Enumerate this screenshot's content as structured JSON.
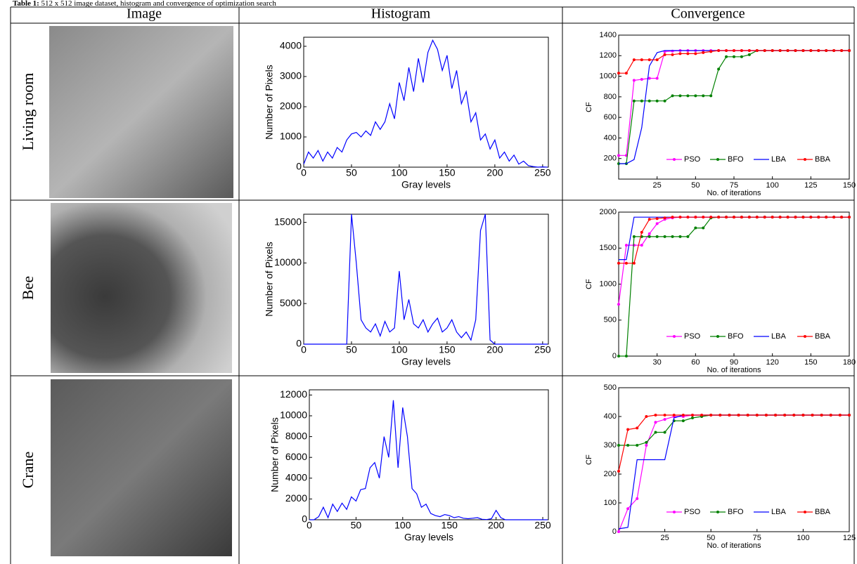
{
  "caption": {
    "label": "Table 1:",
    "text": "512 x 512 image dataset, histogram and convergence of optimization search"
  },
  "table": {
    "headers": [
      "Image",
      "Histogram",
      "Convergence"
    ],
    "row_labels": [
      "Living room",
      "Bee",
      "Crane"
    ]
  },
  "chart_data": [
    {
      "type": "line",
      "xlabel": "Gray levels",
      "ylabel": "Number of Pixels",
      "color": "#0000ff",
      "x": [
        0,
        5,
        10,
        15,
        20,
        25,
        30,
        35,
        40,
        45,
        50,
        55,
        60,
        65,
        70,
        75,
        80,
        85,
        90,
        95,
        100,
        105,
        110,
        115,
        120,
        125,
        130,
        135,
        140,
        145,
        150,
        155,
        160,
        165,
        170,
        175,
        180,
        185,
        190,
        195,
        200,
        205,
        210,
        215,
        220,
        225,
        230,
        235,
        240,
        245,
        250,
        255
      ],
      "values": [
        100,
        500,
        300,
        550,
        200,
        500,
        300,
        650,
        500,
        900,
        1100,
        1150,
        1000,
        1200,
        1050,
        1500,
        1250,
        1500,
        2100,
        1600,
        2800,
        2200,
        3300,
        2500,
        3600,
        2800,
        3800,
        4200,
        3900,
        3200,
        3700,
        2600,
        3200,
        2100,
        2500,
        1500,
        1800,
        900,
        1100,
        600,
        900,
        300,
        500,
        200,
        400,
        100,
        200,
        50,
        20,
        0,
        10,
        0
      ],
      "xlim": [
        0,
        256
      ],
      "ylim": [
        0,
        4300
      ],
      "xticks": [
        0,
        50,
        100,
        150,
        200,
        250
      ],
      "yticks": [
        0,
        1000,
        2000,
        3000,
        4000
      ]
    },
    {
      "type": "line",
      "xlabel": "No. of iterations",
      "ylabel": "CF",
      "legend": "lower right",
      "x": [
        0,
        5,
        10,
        15,
        20,
        25,
        30,
        35,
        40,
        45,
        50,
        55,
        60,
        65,
        70,
        75,
        80,
        85,
        90,
        95,
        100,
        105,
        110,
        115,
        120,
        125,
        130,
        135,
        140,
        145,
        150
      ],
      "series": [
        {
          "name": "PSO",
          "color": "#ff00ff",
          "marker": "dot",
          "values": [
            230,
            230,
            960,
            970,
            980,
            980,
            1240,
            1245,
            1250,
            1250,
            1250,
            1250,
            1250,
            1250,
            1250,
            1250,
            1250,
            1250,
            1250,
            1250,
            1250,
            1250,
            1250,
            1250,
            1250,
            1250,
            1250,
            1250,
            1250,
            1250,
            1250
          ]
        },
        {
          "name": "BFO",
          "color": "#008000",
          "marker": "dot",
          "values": [
            150,
            150,
            760,
            760,
            760,
            760,
            760,
            810,
            810,
            810,
            810,
            810,
            810,
            1070,
            1190,
            1190,
            1190,
            1210,
            1250,
            1250,
            1250,
            1250,
            1250,
            1250,
            1250,
            1250,
            1250,
            1250,
            1250,
            1250,
            1250
          ]
        },
        {
          "name": "LBA",
          "color": "#0000ff",
          "marker": "none",
          "values": [
            150,
            150,
            190,
            500,
            1100,
            1230,
            1250,
            1250,
            1250,
            1250,
            1250,
            1250,
            1250,
            1250,
            1250,
            1250,
            1250,
            1250,
            1250,
            1250,
            1250,
            1250,
            1250,
            1250,
            1250,
            1250,
            1250,
            1250,
            1250,
            1250,
            1250
          ]
        },
        {
          "name": "BBA",
          "color": "#ff0000",
          "marker": "dot",
          "values": [
            1030,
            1030,
            1160,
            1160,
            1160,
            1160,
            1210,
            1210,
            1220,
            1220,
            1220,
            1230,
            1240,
            1250,
            1250,
            1250,
            1250,
            1250,
            1250,
            1250,
            1250,
            1250,
            1250,
            1250,
            1250,
            1250,
            1250,
            1250,
            1250,
            1250,
            1250
          ]
        }
      ],
      "xlim": [
        0,
        150
      ],
      "ylim": [
        0,
        1400
      ],
      "xticks": [
        25,
        50,
        75,
        100,
        125,
        150
      ],
      "yticks": [
        200,
        400,
        600,
        800,
        1000,
        1200,
        1400
      ]
    },
    {
      "type": "line",
      "xlabel": "Gray levels",
      "ylabel": "Number of Pixels",
      "color": "#0000ff",
      "x": [
        0,
        5,
        10,
        15,
        20,
        25,
        30,
        35,
        40,
        45,
        50,
        55,
        60,
        65,
        70,
        75,
        80,
        85,
        90,
        95,
        100,
        105,
        110,
        115,
        120,
        125,
        130,
        135,
        140,
        145,
        150,
        155,
        160,
        165,
        170,
        175,
        180,
        185,
        190,
        195,
        200,
        205,
        210,
        215,
        220,
        225,
        230,
        235,
        240,
        245,
        250,
        255
      ],
      "values": [
        0,
        0,
        0,
        0,
        0,
        0,
        0,
        0,
        0,
        0,
        16000,
        10000,
        3000,
        2000,
        1500,
        2500,
        1000,
        2800,
        1500,
        2000,
        9000,
        3000,
        5500,
        2500,
        2000,
        3000,
        1500,
        2500,
        3200,
        1500,
        2000,
        3000,
        1500,
        800,
        1500,
        500,
        3000,
        14000,
        16000,
        500,
        0,
        0,
        0,
        0,
        0,
        0,
        0,
        0,
        0,
        0,
        0,
        0
      ],
      "xlim": [
        0,
        256
      ],
      "ylim": [
        0,
        16000
      ],
      "xticks": [
        0,
        50,
        100,
        150,
        200,
        250
      ],
      "yticks": [
        0,
        5000,
        10000,
        15000
      ]
    },
    {
      "type": "line",
      "xlabel": "No. of iterations",
      "ylabel": "CF",
      "legend": "lower right",
      "x": [
        0,
        6,
        12,
        18,
        24,
        30,
        36,
        42,
        48,
        54,
        60,
        66,
        72,
        78,
        84,
        90,
        96,
        102,
        108,
        114,
        120,
        126,
        132,
        138,
        144,
        150,
        156,
        162,
        168,
        174,
        180
      ],
      "series": [
        {
          "name": "PSO",
          "color": "#ff00ff",
          "marker": "dot",
          "values": [
            720,
            1540,
            1540,
            1540,
            1700,
            1840,
            1900,
            1920,
            1930,
            1930,
            1930,
            1930,
            1930,
            1930,
            1930,
            1930,
            1930,
            1930,
            1930,
            1930,
            1930,
            1930,
            1930,
            1930,
            1930,
            1930,
            1930,
            1930,
            1930,
            1930,
            1930
          ]
        },
        {
          "name": "BFO",
          "color": "#008000",
          "marker": "dot",
          "values": [
            0,
            0,
            1660,
            1660,
            1660,
            1660,
            1660,
            1660,
            1660,
            1660,
            1780,
            1780,
            1920,
            1930,
            1930,
            1930,
            1930,
            1930,
            1930,
            1930,
            1930,
            1930,
            1930,
            1930,
            1930,
            1930,
            1930,
            1930,
            1930,
            1930,
            1930
          ]
        },
        {
          "name": "LBA",
          "color": "#0000ff",
          "marker": "none",
          "values": [
            1340,
            1340,
            1930,
            1930,
            1930,
            1930,
            1930,
            1930,
            1930,
            1930,
            1930,
            1930,
            1930,
            1930,
            1930,
            1930,
            1930,
            1930,
            1930,
            1930,
            1930,
            1930,
            1930,
            1930,
            1930,
            1930,
            1930,
            1930,
            1930,
            1930,
            1930
          ]
        },
        {
          "name": "BBA",
          "color": "#ff0000",
          "marker": "dot",
          "values": [
            1290,
            1290,
            1290,
            1720,
            1900,
            1910,
            1920,
            1930,
            1930,
            1930,
            1930,
            1930,
            1930,
            1930,
            1930,
            1930,
            1930,
            1930,
            1930,
            1930,
            1930,
            1930,
            1930,
            1930,
            1930,
            1930,
            1930,
            1930,
            1930,
            1930,
            1930
          ]
        }
      ],
      "xlim": [
        0,
        180
      ],
      "ylim": [
        0,
        2000
      ],
      "xticks": [
        30,
        60,
        90,
        120,
        150,
        180
      ],
      "yticks": [
        0,
        500,
        1000,
        1500,
        2000
      ]
    },
    {
      "type": "line",
      "xlabel": "Gray levels",
      "ylabel": "Number of Pixels",
      "color": "#0000ff",
      "x": [
        0,
        5,
        10,
        15,
        20,
        25,
        30,
        35,
        40,
        45,
        50,
        55,
        60,
        65,
        70,
        75,
        80,
        85,
        90,
        95,
        100,
        105,
        110,
        115,
        120,
        125,
        130,
        135,
        140,
        145,
        150,
        155,
        160,
        165,
        170,
        175,
        180,
        185,
        190,
        195,
        200,
        205,
        210,
        215,
        220,
        225,
        230,
        235,
        240,
        245,
        250,
        255
      ],
      "values": [
        0,
        0,
        300,
        1200,
        200,
        1500,
        800,
        1600,
        1000,
        2200,
        1800,
        2900,
        3000,
        5000,
        5500,
        4000,
        8000,
        6000,
        11500,
        5000,
        10800,
        8000,
        3000,
        2500,
        1200,
        1500,
        600,
        400,
        300,
        500,
        400,
        200,
        300,
        150,
        100,
        150,
        200,
        50,
        20,
        100,
        900,
        200,
        0,
        0,
        0,
        0,
        0,
        0,
        0,
        0,
        0,
        0
      ],
      "xlim": [
        0,
        256
      ],
      "ylim": [
        0,
        12500
      ],
      "xticks": [
        0,
        50,
        100,
        150,
        200,
        250
      ],
      "yticks": [
        0,
        2000,
        4000,
        6000,
        8000,
        10000,
        12000
      ]
    },
    {
      "type": "line",
      "xlabel": "No. of iterations",
      "ylabel": "CF",
      "legend": "lower right",
      "x": [
        0,
        5,
        10,
        15,
        20,
        25,
        30,
        35,
        40,
        45,
        50,
        55,
        60,
        65,
        70,
        75,
        80,
        85,
        90,
        95,
        100,
        105,
        110,
        115,
        120,
        125
      ],
      "series": [
        {
          "name": "PSO",
          "color": "#ff00ff",
          "marker": "dot",
          "values": [
            0,
            80,
            115,
            300,
            380,
            390,
            400,
            400,
            405,
            405,
            405,
            405,
            405,
            405,
            405,
            405,
            405,
            405,
            405,
            405,
            405,
            405,
            405,
            405,
            405,
            405
          ]
        },
        {
          "name": "BFO",
          "color": "#008000",
          "marker": "dot",
          "values": [
            300,
            300,
            300,
            310,
            345,
            345,
            385,
            385,
            395,
            400,
            405,
            405,
            405,
            405,
            405,
            405,
            405,
            405,
            405,
            405,
            405,
            405,
            405,
            405,
            405,
            405
          ]
        },
        {
          "name": "LBA",
          "color": "#0000ff",
          "marker": "none",
          "values": [
            10,
            15,
            250,
            250,
            250,
            250,
            395,
            405,
            405,
            405,
            405,
            405,
            405,
            405,
            405,
            405,
            405,
            405,
            405,
            405,
            405,
            405,
            405,
            405,
            405,
            405
          ]
        },
        {
          "name": "BBA",
          "color": "#ff0000",
          "marker": "dot",
          "values": [
            210,
            355,
            360,
            400,
            405,
            405,
            405,
            405,
            405,
            405,
            405,
            405,
            405,
            405,
            405,
            405,
            405,
            405,
            405,
            405,
            405,
            405,
            405,
            405,
            405,
            405
          ]
        }
      ],
      "xlim": [
        0,
        125
      ],
      "ylim": [
        0,
        500
      ],
      "xticks": [
        25,
        50,
        75,
        100,
        125
      ],
      "yticks": [
        0,
        100,
        200,
        300,
        400,
        500
      ]
    }
  ]
}
